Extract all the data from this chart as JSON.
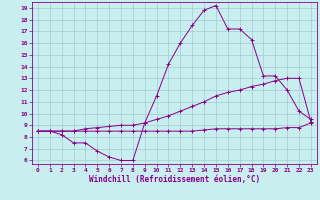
{
  "xlabel": "Windchill (Refroidissement éolien,°C)",
  "bg_color": "#c8eef0",
  "line_color": "#880088",
  "grid_color": "#a0ccd0",
  "xlim": [
    -0.5,
    23.5
  ],
  "ylim": [
    5.7,
    19.5
  ],
  "xticks": [
    0,
    1,
    2,
    3,
    4,
    5,
    6,
    7,
    8,
    9,
    10,
    11,
    12,
    13,
    14,
    15,
    16,
    17,
    18,
    19,
    20,
    21,
    22,
    23
  ],
  "yticks": [
    6,
    7,
    8,
    9,
    10,
    11,
    12,
    13,
    14,
    15,
    16,
    17,
    18,
    19
  ],
  "curve1_x": [
    0,
    1,
    2,
    3,
    4,
    5,
    6,
    7,
    8,
    9,
    10,
    11,
    12,
    13,
    14,
    15,
    16,
    17,
    18,
    19,
    20,
    21,
    22,
    23
  ],
  "curve1_y": [
    8.5,
    8.5,
    8.2,
    7.5,
    7.5,
    6.8,
    6.3,
    6.0,
    6.0,
    9.2,
    11.5,
    14.2,
    16.0,
    17.5,
    18.8,
    19.2,
    17.2,
    17.2,
    16.3,
    13.2,
    13.2,
    12.0,
    10.2,
    9.5
  ],
  "curve2_x": [
    0,
    1,
    2,
    3,
    4,
    5,
    6,
    7,
    8,
    9,
    10,
    11,
    12,
    13,
    14,
    15,
    16,
    17,
    18,
    19,
    20,
    21,
    22,
    23
  ],
  "curve2_y": [
    8.5,
    8.5,
    8.5,
    8.5,
    8.7,
    8.8,
    8.9,
    9.0,
    9.0,
    9.2,
    9.5,
    9.8,
    10.2,
    10.6,
    11.0,
    11.5,
    11.8,
    12.0,
    12.3,
    12.5,
    12.8,
    13.0,
    13.0,
    9.3
  ],
  "curve3_x": [
    0,
    1,
    2,
    3,
    4,
    5,
    6,
    7,
    8,
    9,
    10,
    11,
    12,
    13,
    14,
    15,
    16,
    17,
    18,
    19,
    20,
    21,
    22,
    23
  ],
  "curve3_y": [
    8.5,
    8.5,
    8.5,
    8.5,
    8.5,
    8.5,
    8.5,
    8.5,
    8.5,
    8.5,
    8.5,
    8.5,
    8.5,
    8.5,
    8.6,
    8.7,
    8.7,
    8.7,
    8.7,
    8.7,
    8.7,
    8.8,
    8.8,
    9.2
  ],
  "xlabel_fontsize": 5.5,
  "tick_fontsize": 4.5
}
